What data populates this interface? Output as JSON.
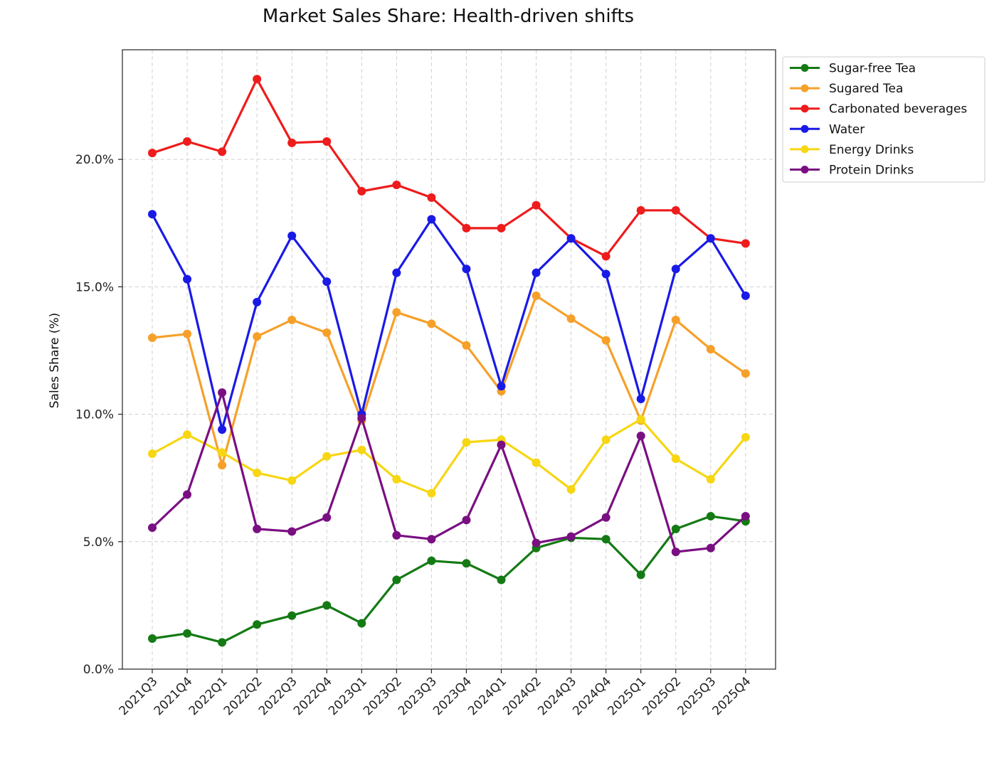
{
  "chart_data": {
    "type": "line",
    "title": "Market Sales Share: Health-driven shifts",
    "xlabel": "",
    "ylabel": "Sales Share (%)",
    "ylim": [
      0,
      24.3
    ],
    "yticks": [
      0,
      5,
      10,
      15,
      20
    ],
    "ytick_labels": [
      "0.0%",
      "5.0%",
      "10.0%",
      "15.0%",
      "20.0%"
    ],
    "grid": true,
    "legend_position": "outside-top-right",
    "categories": [
      "2021Q3",
      "2021Q4",
      "2022Q1",
      "2022Q2",
      "2022Q3",
      "2022Q4",
      "2023Q1",
      "2023Q2",
      "2023Q3",
      "2023Q4",
      "2024Q1",
      "2024Q2",
      "2024Q3",
      "2024Q4",
      "2025Q1",
      "2025Q2",
      "2025Q3",
      "2025Q4"
    ],
    "series": [
      {
        "name": "Sugar-free Tea",
        "color": "#147a14",
        "values": [
          1.2,
          1.4,
          1.05,
          1.75,
          2.1,
          2.5,
          1.8,
          3.5,
          4.25,
          4.15,
          3.5,
          4.75,
          5.15,
          5.1,
          3.7,
          5.5,
          6.0,
          5.8
        ]
      },
      {
        "name": "Sugared Tea",
        "color": "#f6a02a",
        "values": [
          13.0,
          13.15,
          8.0,
          13.05,
          13.7,
          13.2,
          9.75,
          14.0,
          13.55,
          12.7,
          10.9,
          14.65,
          13.75,
          12.9,
          9.75,
          13.7,
          12.55,
          11.6
        ]
      },
      {
        "name": "Carbonated beverages",
        "color": "#ee1c1c",
        "values": [
          20.25,
          20.7,
          20.3,
          23.15,
          20.65,
          20.7,
          18.75,
          19.0,
          18.5,
          17.3,
          17.3,
          18.2,
          16.9,
          16.2,
          18.0,
          18.0,
          16.9,
          16.7
        ]
      },
      {
        "name": "Water",
        "color": "#1a1ae6",
        "values": [
          17.85,
          15.3,
          9.4,
          14.4,
          17.0,
          15.2,
          10.0,
          15.55,
          17.65,
          15.7,
          11.1,
          15.55,
          16.9,
          15.5,
          10.6,
          15.7,
          16.9,
          14.65
        ]
      },
      {
        "name": "Energy Drinks",
        "color": "#f7d613",
        "values": [
          8.45,
          9.2,
          8.5,
          7.7,
          7.4,
          8.35,
          8.6,
          7.45,
          6.9,
          8.9,
          9.0,
          8.1,
          7.05,
          9.0,
          9.8,
          8.25,
          7.45,
          9.1
        ]
      },
      {
        "name": "Protein Drinks",
        "color": "#7a0f82",
        "values": [
          5.55,
          6.85,
          10.85,
          5.5,
          5.4,
          5.95,
          9.85,
          5.25,
          5.1,
          5.85,
          8.8,
          4.95,
          5.2,
          5.95,
          9.15,
          4.6,
          4.75,
          6.0
        ]
      }
    ]
  }
}
